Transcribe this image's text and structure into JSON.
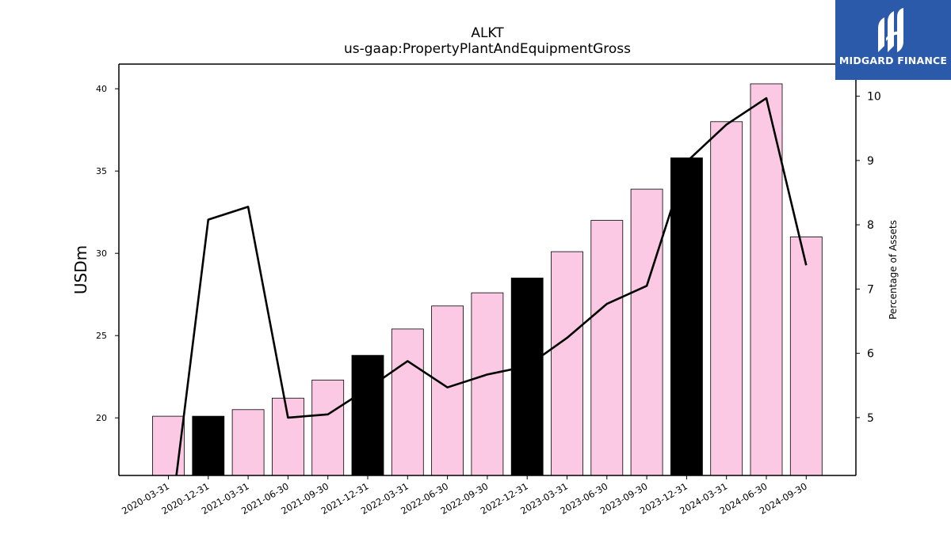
{
  "chart_data": {
    "type": "bar+line",
    "title": "ALKT",
    "subtitle": "us-gaap:PropertyPlantAndEquipmentGross",
    "ylabel": "USDm",
    "y2label": "Percentage of Assets",
    "ylim": [
      16.5,
      41.5
    ],
    "y2lim": [
      4.1,
      10.5
    ],
    "yticks": [
      20,
      25,
      30,
      35,
      40
    ],
    "y2ticks": [
      5,
      6,
      7,
      8,
      9,
      10
    ],
    "categories": [
      "2020-03-31",
      "2020-12-31",
      "2021-03-31",
      "2021-06-30",
      "2021-09-30",
      "2021-12-31",
      "2022-03-31",
      "2022-06-30",
      "2022-09-30",
      "2022-12-31",
      "2023-03-31",
      "2023-06-30",
      "2023-09-30",
      "2023-12-31",
      "2024-03-31",
      "2024-06-30",
      "2024-09-30"
    ],
    "bars": {
      "values": [
        20.1,
        20.1,
        20.5,
        21.2,
        22.3,
        23.8,
        25.4,
        26.8,
        27.6,
        28.5,
        30.1,
        32.0,
        33.9,
        35.8,
        38.0,
        40.3,
        31.0
      ],
      "highlight": [
        false,
        true,
        false,
        false,
        false,
        true,
        false,
        false,
        false,
        true,
        false,
        false,
        false,
        true,
        false,
        false,
        false
      ],
      "color": "#fcc9e5",
      "highlight_color": "#000000"
    },
    "line": {
      "values": [
        3.1,
        8.08,
        8.28,
        5.0,
        5.05,
        5.45,
        5.88,
        5.47,
        5.67,
        5.8,
        6.24,
        6.77,
        7.05,
        8.98,
        9.56,
        9.97,
        7.37
      ],
      "color": "#000000"
    }
  },
  "logo": {
    "text": "MIDGARD FINANCE",
    "color": "#2b5aab"
  }
}
